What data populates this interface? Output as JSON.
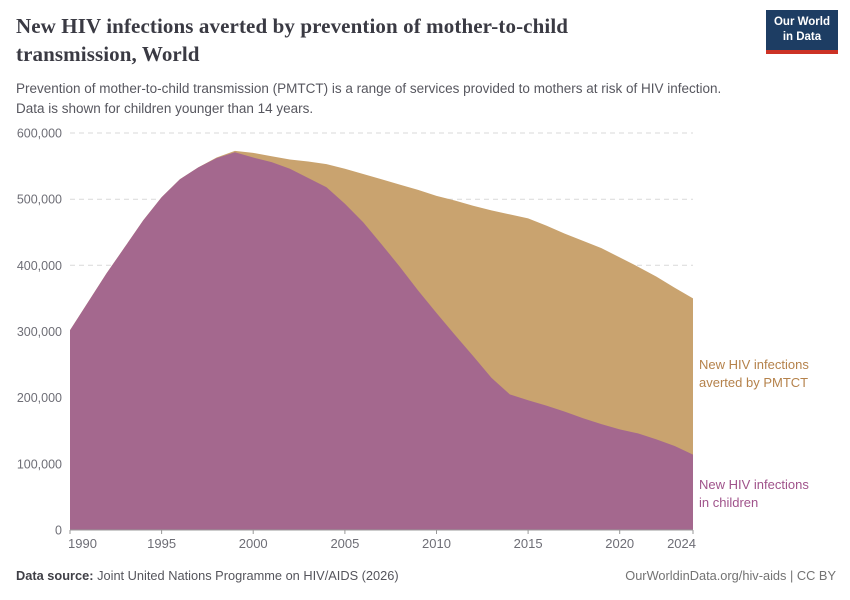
{
  "header": {
    "title_lines": [
      "New HIV infections averted by prevention of mother-to-child",
      "transmission, World"
    ],
    "subtitle_lines": [
      "Prevention of mother-to-child transmission (PMTCT) is a range of services provided to mothers at risk of HIV infection.",
      "Data is shown for children younger than 14 years."
    ],
    "logo_lines": [
      "Our World",
      "in Data"
    ]
  },
  "series_labels": {
    "averted": [
      "New HIV infections",
      "averted by PMTCT"
    ],
    "children": [
      "New HIV infections",
      "in children"
    ]
  },
  "footer": {
    "source_label": "Data source:",
    "source_text": " Joint United Nations Programme on HIV/AIDS (2026)",
    "rights": "OurWorldinData.org/hiv-aids | CC BY"
  },
  "colors": {
    "children_area": "#a4688e",
    "averted_area": "#c9a36f",
    "gridline": "#d9d9d9",
    "axis_line": "#989898",
    "tick_text": "#6e6e76",
    "logo_bg": "#1d3d63",
    "logo_stripe": "#cc3225"
  },
  "chart_data": {
    "type": "area",
    "stacked": true,
    "title": "New HIV infections averted by prevention of mother-to-child transmission, World",
    "xlabel": "",
    "ylabel": "",
    "grid": "horizontal-dashed",
    "legend": "inline-right-labels",
    "ylim": [
      0,
      600000
    ],
    "x": [
      1990,
      1991,
      1992,
      1993,
      1994,
      1995,
      1996,
      1997,
      1998,
      1999,
      2000,
      2001,
      2002,
      2003,
      2004,
      2005,
      2006,
      2007,
      2008,
      2009,
      2010,
      2011,
      2012,
      2013,
      2014,
      2015,
      2016,
      2017,
      2018,
      2019,
      2020,
      2021,
      2022,
      2023,
      2024
    ],
    "series": [
      {
        "name": "New HIV infections in children",
        "color": "#a4688e",
        "values": [
          302000,
          345000,
          388000,
          428000,
          468000,
          503000,
          530000,
          548000,
          562000,
          571000,
          563000,
          556000,
          546000,
          532000,
          518000,
          493000,
          465000,
          432000,
          398000,
          362000,
          328000,
          295000,
          263000,
          230000,
          205000,
          196000,
          188000,
          179000,
          169000,
          160000,
          152000,
          146000,
          137000,
          127000,
          114000
        ]
      },
      {
        "name": "New HIV infections averted by PMTCT",
        "color": "#c9a36f",
        "values": [
          0,
          0,
          0,
          0,
          0,
          0,
          0,
          0,
          1000,
          2000,
          7000,
          9000,
          14000,
          25000,
          35000,
          53000,
          73000,
          98000,
          124000,
          152000,
          177000,
          203000,
          227000,
          253000,
          272000,
          275000,
          272000,
          269000,
          268000,
          266000,
          260000,
          252000,
          246000,
          239000,
          236000
        ]
      }
    ],
    "yticks": [
      {
        "value": 0,
        "label": "0"
      },
      {
        "value": 100000,
        "label": "100,000"
      },
      {
        "value": 200000,
        "label": "200,000"
      },
      {
        "value": 300000,
        "label": "300,000"
      },
      {
        "value": 400000,
        "label": "400,000"
      },
      {
        "value": 500000,
        "label": "500,000"
      },
      {
        "value": 600000,
        "label": "600,000"
      }
    ],
    "xticks": [
      {
        "value": 1990,
        "label": "1990",
        "anchor": "start"
      },
      {
        "value": 1995,
        "label": "1995",
        "anchor": "middle"
      },
      {
        "value": 2000,
        "label": "2000",
        "anchor": "middle"
      },
      {
        "value": 2005,
        "label": "2005",
        "anchor": "middle"
      },
      {
        "value": 2010,
        "label": "2010",
        "anchor": "middle"
      },
      {
        "value": 2015,
        "label": "2015",
        "anchor": "middle"
      },
      {
        "value": 2020,
        "label": "2020",
        "anchor": "middle"
      },
      {
        "value": 2024,
        "label": "2024",
        "anchor": "end"
      }
    ]
  }
}
